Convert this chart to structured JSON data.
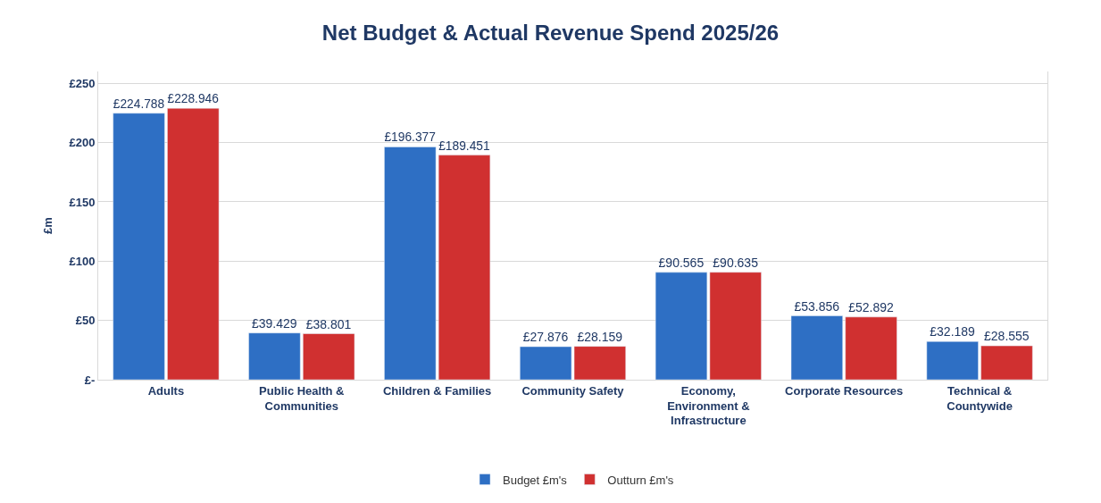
{
  "chart_data": {
    "type": "bar",
    "title": "Net Budget & Actual Revenue Spend 2025/26",
    "ylabel": "£m",
    "categories": [
      "Adults",
      "Public Health & Communities",
      "Children & Families",
      "Community Safety",
      "Economy, Environment & Infrastructure",
      "Corporate Resources",
      "Technical & Countywide"
    ],
    "series": [
      {
        "name": "Budget £m's",
        "color": "#2e6fc4",
        "values": [
          224.788,
          39.429,
          196.377,
          27.876,
          90.565,
          53.856,
          32.189
        ],
        "value_labels": [
          "£224.788",
          "£39.429",
          "£196.377",
          "£27.876",
          "£90.565",
          "£53.856",
          "£32.189"
        ]
      },
      {
        "name": "Outturn £m's",
        "color": "#d03030",
        "values": [
          228.946,
          38.801,
          189.451,
          28.159,
          90.635,
          52.892,
          28.555
        ],
        "value_labels": [
          "£228.946",
          "£38.801",
          "£189.451",
          "£28.159",
          "£90.635",
          "£52.892",
          "£28.555"
        ]
      }
    ],
    "ylim": [
      0,
      260
    ],
    "yticks": [
      {
        "value": 0,
        "label": "£-"
      },
      {
        "value": 50,
        "label": "£50"
      },
      {
        "value": 100,
        "label": "£100"
      },
      {
        "value": 150,
        "label": "£150"
      },
      {
        "value": 200,
        "label": "£200"
      },
      {
        "value": 250,
        "label": "£250"
      }
    ],
    "grid": "y",
    "legend": "bottom"
  }
}
